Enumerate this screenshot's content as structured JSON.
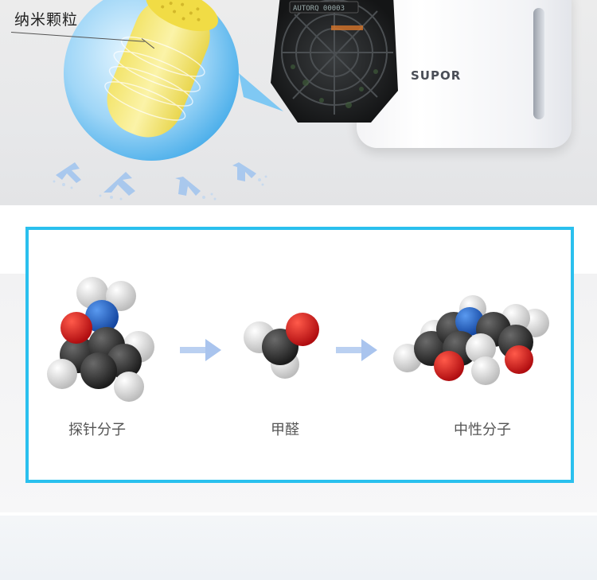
{
  "banner": {
    "callout_label": "纳米颗粒",
    "brand": "SUPOR",
    "filter_screen_text": "AUTORQ 00003"
  },
  "reaction": {
    "steps": [
      {
        "label": "探针分子"
      },
      {
        "label": "甲醛"
      },
      {
        "label": "中性分子"
      }
    ]
  },
  "colors": {
    "panel_border": "#2ac0ee",
    "arrow": "#a9c4ee",
    "carbon": "#2e2e2e",
    "oxygen": "#d4161a",
    "nitrogen": "#1f5fbf",
    "hydrogen": "#e6e6e6",
    "nanoparticle": "#f6e77a",
    "bubble": "#54b8ef"
  }
}
